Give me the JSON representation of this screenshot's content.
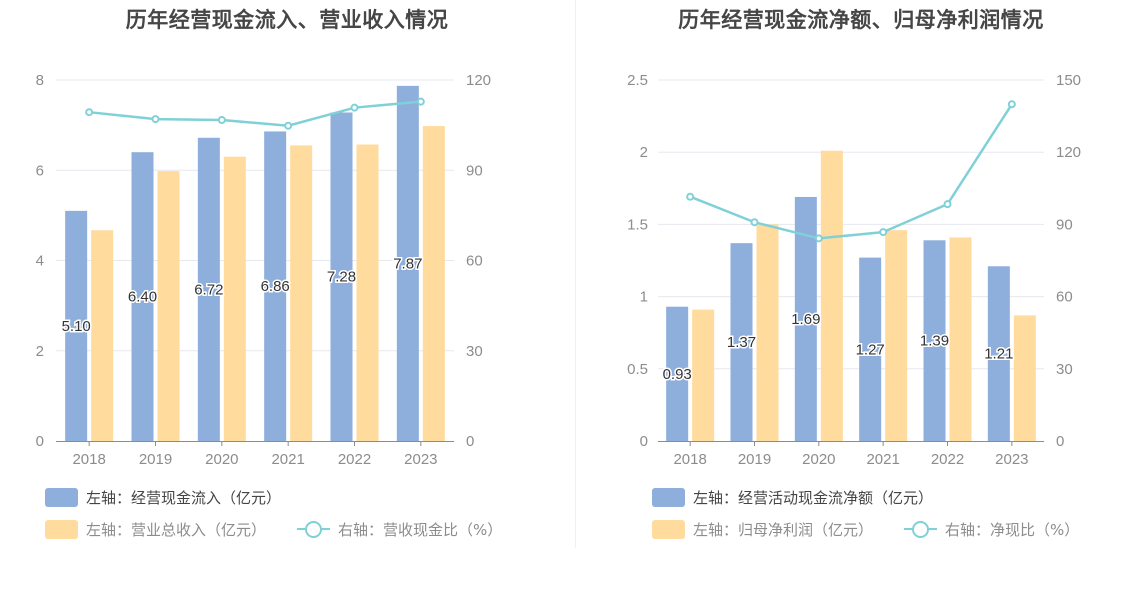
{
  "colors": {
    "bar_primary": "#8eaedc",
    "bar_secondary": "#ffdb9e",
    "line": "#80d0d8",
    "grid": "#e6e8ef",
    "axis_text": "#8c8c8c",
    "bar_label": "#333333"
  },
  "chart_data": [
    {
      "type": "bar",
      "title": "历年经营现金流入、营业收入情况",
      "categories": [
        "2018",
        "2019",
        "2020",
        "2021",
        "2022",
        "2023"
      ],
      "left_axis": {
        "min": 0,
        "max": 8,
        "ticks": [
          "0",
          "2",
          "4",
          "6",
          "8"
        ]
      },
      "right_axis": {
        "min": 0,
        "max": 120,
        "ticks": [
          "0",
          "30",
          "60",
          "90",
          "120"
        ]
      },
      "series": [
        {
          "name": "左轴：经营现金流入（亿元）",
          "type": "bar",
          "axis": "left",
          "values": [
            5.1,
            6.4,
            6.72,
            6.86,
            7.28,
            7.87
          ],
          "labels": [
            "5.10",
            "6.40",
            "6.72",
            "6.86",
            "7.28",
            "7.87"
          ]
        },
        {
          "name": "左轴：营业总收入（亿元）",
          "type": "bar",
          "axis": "left",
          "values": [
            4.67,
            5.98,
            6.3,
            6.55,
            6.57,
            6.98
          ]
        },
        {
          "name": "右轴：营收现金比（%）",
          "type": "line",
          "axis": "right",
          "values": [
            109.3,
            107.0,
            106.7,
            104.8,
            110.8,
            112.8
          ]
        }
      ],
      "grid": true,
      "legend_position": "bottom-left"
    },
    {
      "type": "bar",
      "title": "历年经营现金流净额、归母净利润情况",
      "categories": [
        "2018",
        "2019",
        "2020",
        "2021",
        "2022",
        "2023"
      ],
      "left_axis": {
        "min": 0,
        "max": 2.5,
        "ticks": [
          "0",
          "0.5",
          "1",
          "1.5",
          "2",
          "2.5"
        ]
      },
      "right_axis": {
        "min": 0,
        "max": 150,
        "ticks": [
          "0",
          "30",
          "60",
          "90",
          "120",
          "150"
        ]
      },
      "series": [
        {
          "name": "左轴：经营活动现金流净额（亿元）",
          "type": "bar",
          "axis": "left",
          "values": [
            0.93,
            1.37,
            1.69,
            1.27,
            1.39,
            1.21
          ],
          "labels": [
            "0.93",
            "1.37",
            "1.69",
            "1.27",
            "1.39",
            "1.21"
          ]
        },
        {
          "name": "左轴：归母净利润（亿元）",
          "type": "bar",
          "axis": "left",
          "values": [
            0.91,
            1.5,
            2.01,
            1.46,
            1.41,
            0.87
          ]
        },
        {
          "name": "右轴：净现比（%）",
          "type": "line",
          "axis": "right",
          "values": [
            101.5,
            90.9,
            84.2,
            86.8,
            98.4,
            139.9
          ]
        }
      ],
      "grid": true,
      "legend_position": "bottom-left"
    }
  ]
}
